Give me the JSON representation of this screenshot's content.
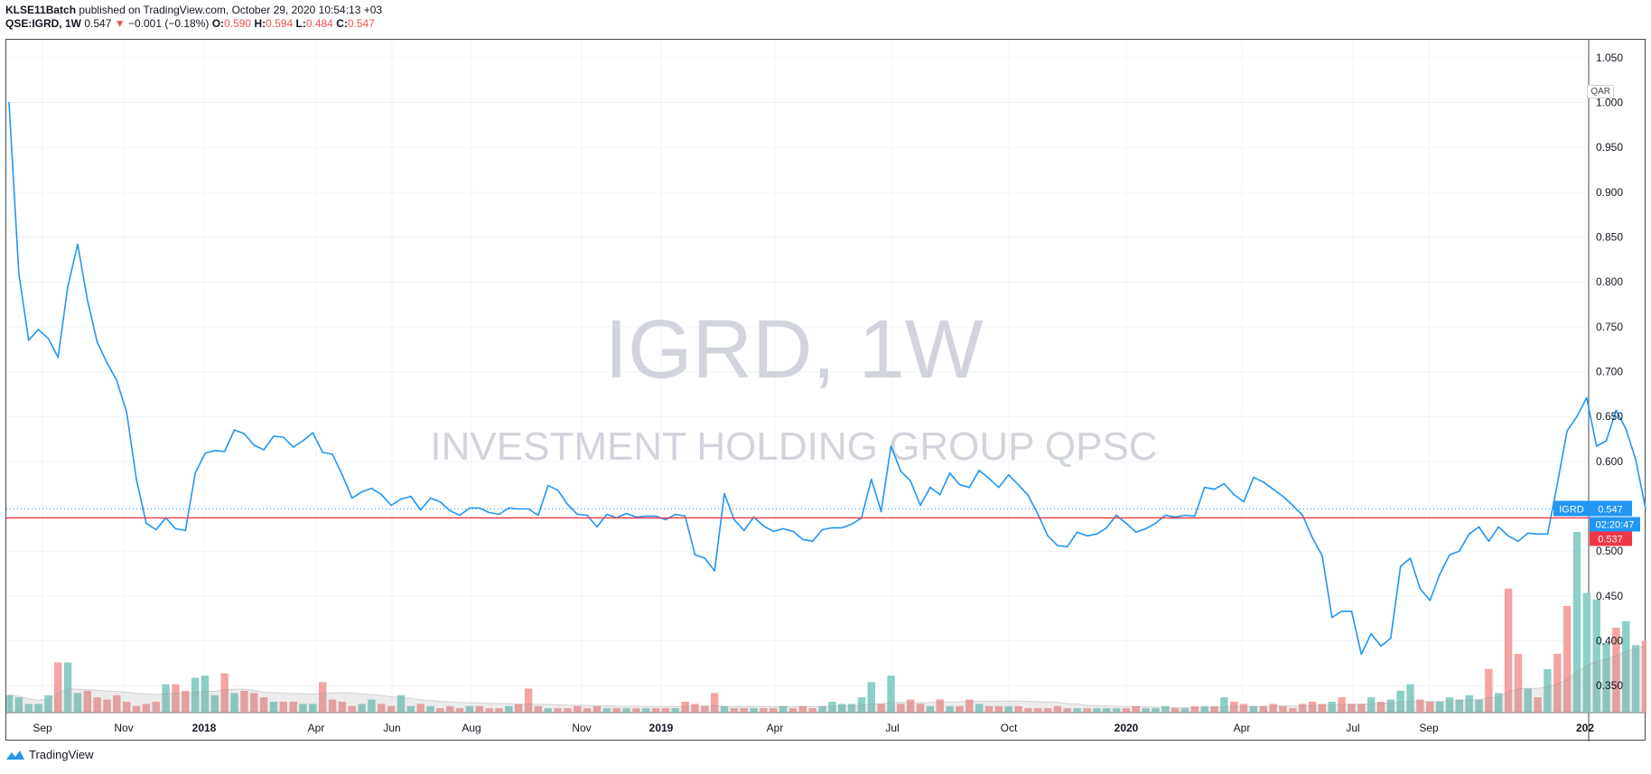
{
  "header": {
    "author": "KLSE11Batch",
    "published_text": "published on TradingView.com, October 29, 2020 10:54:13 +03",
    "symbol": "QSE:IGRD, 1W",
    "last": "0.547",
    "change_arrow": "▼",
    "change": "−0.001 (−0.18%)",
    "o_label": "O:",
    "o_value": "0.590",
    "h_label": "H:",
    "h_value": "0.594",
    "l_label": "L:",
    "l_value": "0.484",
    "c_label": "C:",
    "c_value": "0.547"
  },
  "watermark": {
    "title": "IGRD, 1W",
    "subtitle": "INVESTMENT HOLDING GROUP QPSC"
  },
  "price_axis": {
    "currency": "QAR",
    "price_tag_symbol": "IGRD",
    "price_tag_value": "0.547",
    "countdown": "02:20:47",
    "red_line_value": "0.537"
  },
  "footer": {
    "brand": "TradingView"
  },
  "colors": {
    "line": "#2196f3",
    "vol_up": "#8bd0c7",
    "vol_down": "#f5a3a3",
    "red_line": "#f23645",
    "grid": "#f0f3fa"
  },
  "chart_data": {
    "type": "line",
    "title": "IGRD, 1W",
    "ylim": [
      0.32,
      1.07
    ],
    "y_ticks": [
      "0.350",
      "0.400",
      "0.450",
      "0.500",
      "0.550",
      "0.600",
      "0.650",
      "0.700",
      "0.750",
      "0.800",
      "0.850",
      "0.900",
      "0.950",
      "1.000",
      "1.050"
    ],
    "x_ticks": [
      "Sep",
      "Nov",
      "2018",
      "Apr",
      "Jun",
      "Aug",
      "Nov",
      "2019",
      "Apr",
      "Jul",
      "Oct",
      "2020",
      "Apr",
      "Jul",
      "Sep",
      "202"
    ],
    "series": [
      {
        "values": [
          1.0,
          0.81,
          0.735,
          0.747,
          0.737,
          0.716,
          0.795,
          0.842,
          0.78,
          0.733,
          0.71,
          0.69,
          0.655,
          0.58,
          0.531,
          0.524,
          0.537,
          0.525,
          0.523,
          0.587,
          0.609,
          0.612,
          0.611,
          0.635,
          0.631,
          0.618,
          0.613,
          0.628,
          0.627,
          0.616,
          0.623,
          0.632,
          0.61,
          0.608,
          0.585,
          0.559,
          0.566,
          0.57,
          0.563,
          0.551,
          0.558,
          0.561,
          0.546,
          0.559,
          0.555,
          0.545,
          0.54,
          0.548,
          0.548,
          0.543,
          0.541,
          0.548,
          0.547,
          0.547,
          0.54,
          0.573,
          0.568,
          0.552,
          0.541,
          0.54,
          0.527,
          0.541,
          0.537,
          0.542,
          0.538,
          0.539,
          0.539,
          0.535,
          0.541,
          0.539,
          0.496,
          0.492,
          0.478,
          0.564,
          0.535,
          0.523,
          0.538,
          0.528,
          0.522,
          0.525,
          0.522,
          0.513,
          0.511,
          0.524,
          0.526,
          0.526,
          0.53,
          0.537,
          0.58,
          0.544,
          0.617,
          0.589,
          0.578,
          0.551,
          0.571,
          0.563,
          0.587,
          0.574,
          0.571,
          0.59,
          0.581,
          0.571,
          0.585,
          0.574,
          0.562,
          0.541,
          0.517,
          0.506,
          0.505,
          0.521,
          0.517,
          0.519,
          0.526,
          0.54,
          0.531,
          0.521,
          0.525,
          0.531,
          0.54,
          0.538,
          0.54,
          0.539,
          0.571,
          0.569,
          0.575,
          0.563,
          0.555,
          0.582,
          0.577,
          0.569,
          0.561,
          0.551,
          0.54,
          0.515,
          0.495,
          0.426,
          0.433,
          0.433,
          0.385,
          0.408,
          0.394,
          0.403,
          0.483,
          0.492,
          0.458,
          0.445,
          0.474,
          0.496,
          0.5,
          0.519,
          0.527,
          0.511,
          0.527,
          0.517,
          0.511,
          0.52,
          0.519,
          0.519,
          0.575,
          0.634,
          0.65,
          0.671,
          0.617,
          0.623,
          0.657,
          0.636,
          0.602,
          0.547
        ]
      }
    ],
    "volume": {
      "values": [
        0.08,
        0.07,
        0.04,
        0.04,
        0.08,
        0.23,
        0.23,
        0.09,
        0.1,
        0.07,
        0.06,
        0.08,
        0.05,
        0.03,
        0.04,
        0.05,
        0.13,
        0.13,
        0.1,
        0.16,
        0.17,
        0.08,
        0.18,
        0.09,
        0.1,
        0.09,
        0.07,
        0.05,
        0.05,
        0.05,
        0.04,
        0.04,
        0.14,
        0.06,
        0.05,
        0.03,
        0.04,
        0.06,
        0.04,
        0.03,
        0.08,
        0.03,
        0.04,
        0.03,
        0.02,
        0.03,
        0.02,
        0.03,
        0.03,
        0.02,
        0.02,
        0.03,
        0.04,
        0.11,
        0.03,
        0.02,
        0.02,
        0.02,
        0.03,
        0.02,
        0.03,
        0.02,
        0.02,
        0.02,
        0.02,
        0.02,
        0.02,
        0.02,
        0.02,
        0.05,
        0.04,
        0.03,
        0.09,
        0.03,
        0.02,
        0.02,
        0.02,
        0.02,
        0.02,
        0.03,
        0.02,
        0.03,
        0.02,
        0.03,
        0.05,
        0.04,
        0.04,
        0.07,
        0.14,
        0.04,
        0.17,
        0.04,
        0.06,
        0.04,
        0.03,
        0.06,
        0.03,
        0.03,
        0.06,
        0.04,
        0.03,
        0.03,
        0.03,
        0.03,
        0.02,
        0.02,
        0.02,
        0.03,
        0.02,
        0.02,
        0.02,
        0.02,
        0.02,
        0.02,
        0.02,
        0.03,
        0.02,
        0.02,
        0.03,
        0.02,
        0.02,
        0.03,
        0.03,
        0.03,
        0.07,
        0.05,
        0.04,
        0.03,
        0.03,
        0.04,
        0.03,
        0.02,
        0.04,
        0.05,
        0.04,
        0.05,
        0.07,
        0.04,
        0.04,
        0.07,
        0.05,
        0.06,
        0.1,
        0.13,
        0.06,
        0.05,
        0.05,
        0.07,
        0.06,
        0.08,
        0.06,
        0.2,
        0.09,
        0.57,
        0.27,
        0.11,
        0.07,
        0.2,
        0.27,
        0.49,
        0.83,
        0.55,
        0.52,
        0.32,
        0.39,
        0.42,
        0.31,
        0.33,
        0.32
      ],
      "up": [
        1,
        1,
        1,
        1,
        1,
        0,
        1,
        1,
        0,
        0,
        0,
        0,
        0,
        0,
        0,
        0,
        1,
        0,
        0,
        1,
        1,
        1,
        0,
        1,
        0,
        0,
        0,
        1,
        0,
        0,
        1,
        1,
        0,
        0,
        0,
        0,
        1,
        1,
        0,
        0,
        1,
        1,
        0,
        1,
        0,
        0,
        0,
        1,
        0,
        0,
        0,
        1,
        0,
        0,
        0,
        1,
        0,
        0,
        0,
        0,
        0,
        1,
        0,
        1,
        0,
        1,
        0,
        0,
        1,
        0,
        0,
        0,
        0,
        1,
        0,
        0,
        1,
        0,
        0,
        1,
        0,
        0,
        0,
        1,
        1,
        1,
        1,
        1,
        1,
        0,
        1,
        0,
        0,
        0,
        1,
        0,
        1,
        0,
        0,
        1,
        0,
        0,
        1,
        0,
        0,
        0,
        0,
        0,
        0,
        1,
        0,
        1,
        1,
        1,
        0,
        0,
        1,
        1,
        1,
        0,
        1,
        0,
        1,
        0,
        1,
        0,
        0,
        1,
        0,
        0,
        0,
        0,
        0,
        0,
        0,
        1,
        0,
        0,
        0,
        1,
        0,
        1,
        1,
        1,
        0,
        0,
        1,
        1,
        1,
        1,
        1,
        0,
        1,
        0,
        0,
        1,
        0,
        1,
        0,
        0,
        1,
        1,
        1,
        1,
        0,
        1,
        1,
        0,
        0,
        0
      ]
    }
  }
}
